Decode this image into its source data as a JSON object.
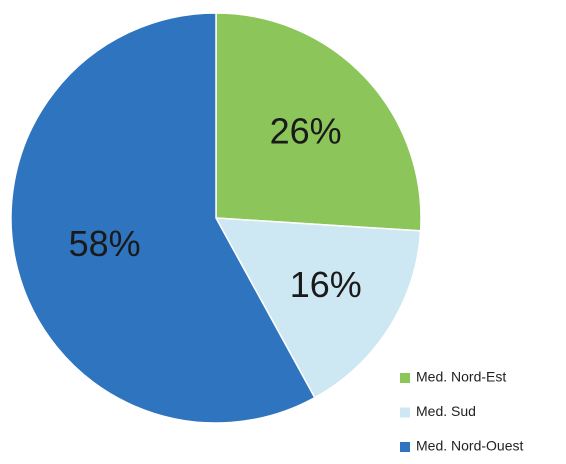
{
  "chart_data": {
    "type": "pie",
    "categories": [
      "Med. Nord-Est",
      "Med. Sud",
      "Med. Nord-Ouest"
    ],
    "values": [
      26,
      16,
      58
    ],
    "value_labels": [
      "26%",
      "16%",
      "58%"
    ],
    "colors": [
      "#8cc65a",
      "#cde7f3",
      "#2f74bf"
    ],
    "legend": "bottom-right"
  }
}
